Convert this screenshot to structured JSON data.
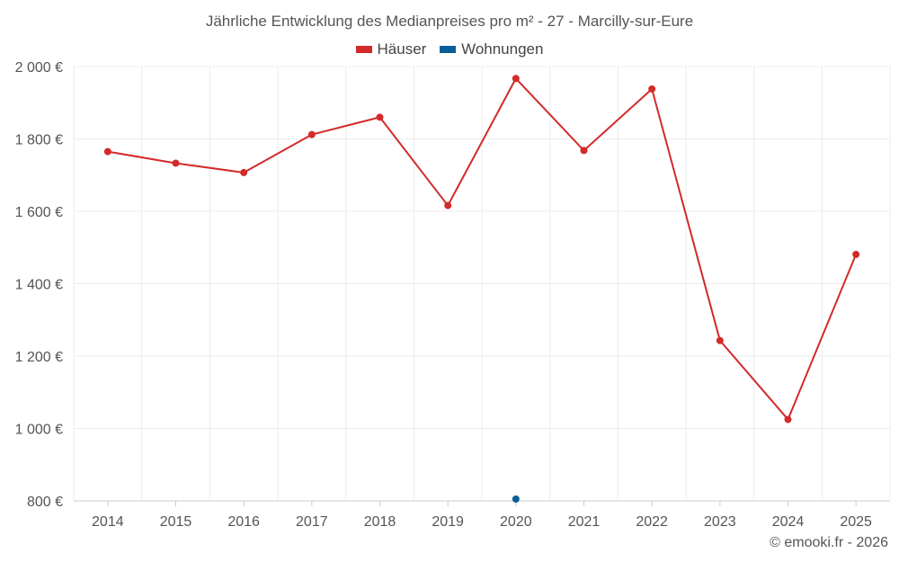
{
  "chart_data": {
    "type": "line",
    "title": "Jährliche Entwicklung des Medianpreises pro m² - 27 - Marcilly-sur-Eure",
    "xlabel": "",
    "ylabel": "",
    "categories": [
      "2014",
      "2015",
      "2016",
      "2017",
      "2018",
      "2019",
      "2020",
      "2021",
      "2022",
      "2023",
      "2024",
      "2025"
    ],
    "ylim": [
      800,
      2000
    ],
    "yticks": [
      800,
      1000,
      1200,
      1400,
      1600,
      1800,
      2000
    ],
    "ytick_labels": [
      "800 €",
      "1 000 €",
      "1 200 €",
      "1 400 €",
      "1 600 €",
      "1 800 €",
      "2 000 €"
    ],
    "grid": true,
    "legend_position": "top-center",
    "series": [
      {
        "name": "Häuser",
        "color": "#d32a2a",
        "values": [
          1765,
          1733,
          1707,
          1812,
          1860,
          1616,
          1967,
          1768,
          1938,
          1243,
          1025,
          1481
        ]
      },
      {
        "name": "Wohnungen",
        "color": "#0b5d99",
        "values": [
          null,
          null,
          null,
          null,
          null,
          null,
          805,
          null,
          null,
          null,
          null,
          null
        ]
      }
    ]
  },
  "footer": {
    "copyright": "© emooki.fr - 2026"
  }
}
